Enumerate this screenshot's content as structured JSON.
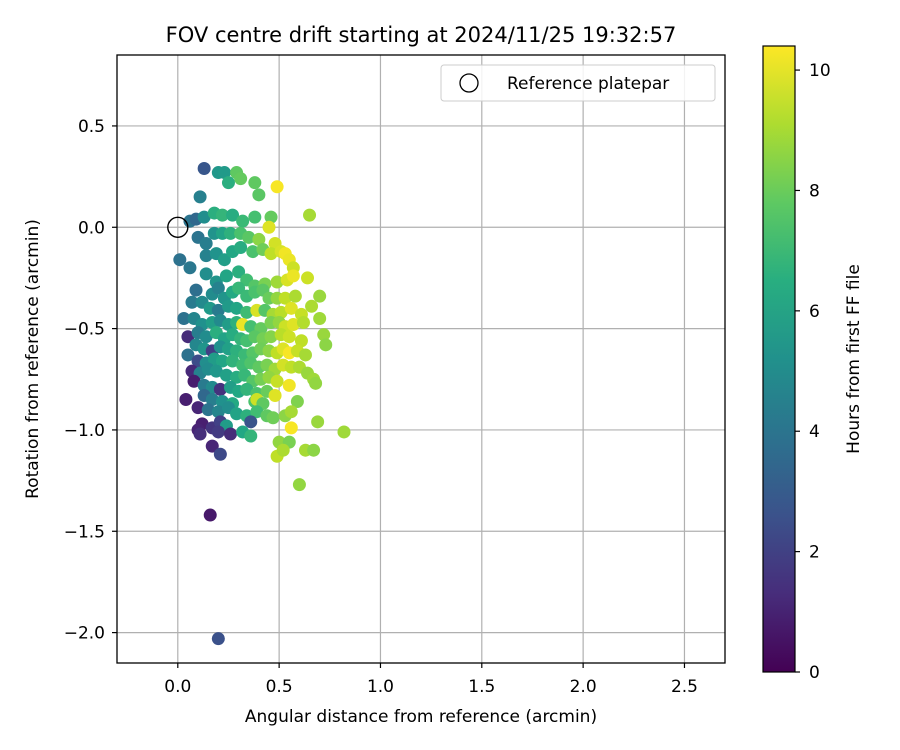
{
  "chart_data": {
    "type": "scatter",
    "title": "FOV centre drift starting at 2024/11/25 19:32:57",
    "xlabel": "Angular distance from reference (arcmin)",
    "ylabel": "Rotation from reference (arcmin)",
    "xlim": [
      -0.3,
      2.7
    ],
    "ylim": [
      -2.15,
      0.85
    ],
    "xticks": [
      0.0,
      0.5,
      1.0,
      1.5,
      2.0,
      2.5
    ],
    "xtick_labels": [
      "0.0",
      "0.5",
      "1.0",
      "1.5",
      "2.0",
      "2.5"
    ],
    "yticks": [
      0.5,
      0.0,
      -0.5,
      -1.0,
      -1.5,
      -2.0
    ],
    "ytick_labels": [
      "0.5",
      "0.0",
      "−0.5",
      "−1.0",
      "−1.5",
      "−2.0"
    ],
    "grid": true,
    "legend": {
      "placement": "top-right",
      "entries": [
        "Reference platepar"
      ]
    },
    "reference_point": {
      "x": 0.0,
      "y": 0.0
    },
    "colorbar": {
      "label": "Hours from first FF file",
      "colormap": "viridis",
      "range": [
        0,
        10.4
      ],
      "ticks": [
        0,
        2,
        4,
        6,
        8,
        10
      ],
      "tick_labels": [
        "0",
        "2",
        "4",
        "6",
        "8",
        "10"
      ]
    },
    "points": [
      {
        "x": 0.13,
        "y": 0.29,
        "h": 2.8
      },
      {
        "x": 0.2,
        "y": 0.27,
        "h": 5.5
      },
      {
        "x": 0.23,
        "y": 0.27,
        "h": 5.6
      },
      {
        "x": 0.29,
        "y": 0.27,
        "h": 7.8
      },
      {
        "x": 0.31,
        "y": 0.24,
        "h": 7.9
      },
      {
        "x": 0.25,
        "y": 0.22,
        "h": 6.5
      },
      {
        "x": 0.38,
        "y": 0.22,
        "h": 7.8
      },
      {
        "x": 0.4,
        "y": 0.16,
        "h": 7.7
      },
      {
        "x": 0.49,
        "y": 0.2,
        "h": 10.3
      },
      {
        "x": 0.65,
        "y": 0.06,
        "h": 9.0
      },
      {
        "x": 0.11,
        "y": 0.15,
        "h": 4.5
      },
      {
        "x": 0.06,
        "y": 0.03,
        "h": 4.0
      },
      {
        "x": 0.09,
        "y": 0.04,
        "h": 3.5
      },
      {
        "x": 0.13,
        "y": 0.05,
        "h": 5.1
      },
      {
        "x": 0.18,
        "y": 0.07,
        "h": 6.5
      },
      {
        "x": 0.22,
        "y": 0.06,
        "h": 6.8
      },
      {
        "x": 0.27,
        "y": 0.06,
        "h": 6.4
      },
      {
        "x": 0.32,
        "y": 0.03,
        "h": 7.0
      },
      {
        "x": 0.38,
        "y": 0.05,
        "h": 7.3
      },
      {
        "x": 0.46,
        "y": 0.05,
        "h": 7.9
      },
      {
        "x": 0.45,
        "y": 0.0,
        "h": 9.9
      },
      {
        "x": 0.1,
        "y": -0.05,
        "h": 4.0
      },
      {
        "x": 0.14,
        "y": -0.08,
        "h": 4.4
      },
      {
        "x": 0.18,
        "y": -0.03,
        "h": 5.3
      },
      {
        "x": 0.22,
        "y": -0.03,
        "h": 6.0
      },
      {
        "x": 0.26,
        "y": -0.03,
        "h": 6.6
      },
      {
        "x": 0.31,
        "y": -0.03,
        "h": 7.4
      },
      {
        "x": 0.35,
        "y": -0.05,
        "h": 7.7
      },
      {
        "x": 0.4,
        "y": -0.06,
        "h": 8.6
      },
      {
        "x": 0.48,
        "y": -0.08,
        "h": 9.7
      },
      {
        "x": 0.01,
        "y": -0.16,
        "h": 3.9
      },
      {
        "x": 0.06,
        "y": -0.2,
        "h": 4.1
      },
      {
        "x": 0.14,
        "y": -0.14,
        "h": 4.6
      },
      {
        "x": 0.19,
        "y": -0.13,
        "h": 5.3
      },
      {
        "x": 0.23,
        "y": -0.16,
        "h": 5.8
      },
      {
        "x": 0.27,
        "y": -0.12,
        "h": 6.2
      },
      {
        "x": 0.31,
        "y": -0.1,
        "h": 6.4
      },
      {
        "x": 0.37,
        "y": -0.12,
        "h": 7.4
      },
      {
        "x": 0.42,
        "y": -0.11,
        "h": 8.1
      },
      {
        "x": 0.46,
        "y": -0.13,
        "h": 9.4
      },
      {
        "x": 0.51,
        "y": -0.12,
        "h": 9.8
      },
      {
        "x": 0.53,
        "y": -0.13,
        "h": 10.2
      },
      {
        "x": 0.55,
        "y": -0.16,
        "h": 10.1
      },
      {
        "x": 0.57,
        "y": -0.2,
        "h": 9.6
      },
      {
        "x": 0.14,
        "y": -0.23,
        "h": 5.1
      },
      {
        "x": 0.19,
        "y": -0.27,
        "h": 5.4
      },
      {
        "x": 0.24,
        "y": -0.24,
        "h": 6.1
      },
      {
        "x": 0.3,
        "y": -0.22,
        "h": 6.5
      },
      {
        "x": 0.34,
        "y": -0.26,
        "h": 7.2
      },
      {
        "x": 0.38,
        "y": -0.29,
        "h": 7.6
      },
      {
        "x": 0.43,
        "y": -0.28,
        "h": 8.3
      },
      {
        "x": 0.49,
        "y": -0.27,
        "h": 8.9
      },
      {
        "x": 0.54,
        "y": -0.26,
        "h": 9.8
      },
      {
        "x": 0.57,
        "y": -0.24,
        "h": 10.1
      },
      {
        "x": 0.64,
        "y": -0.25,
        "h": 9.6
      },
      {
        "x": 0.09,
        "y": -0.31,
        "h": 3.8
      },
      {
        "x": 0.17,
        "y": -0.33,
        "h": 5.0
      },
      {
        "x": 0.2,
        "y": -0.3,
        "h": 4.6
      },
      {
        "x": 0.23,
        "y": -0.35,
        "h": 5.4
      },
      {
        "x": 0.27,
        "y": -0.32,
        "h": 6.3
      },
      {
        "x": 0.3,
        "y": -0.3,
        "h": 6.9
      },
      {
        "x": 0.34,
        "y": -0.34,
        "h": 7.0
      },
      {
        "x": 0.38,
        "y": -0.32,
        "h": 7.4
      },
      {
        "x": 0.42,
        "y": -0.31,
        "h": 7.7
      },
      {
        "x": 0.45,
        "y": -0.35,
        "h": 8.0
      },
      {
        "x": 0.49,
        "y": -0.35,
        "h": 8.7
      },
      {
        "x": 0.53,
        "y": -0.35,
        "h": 9.4
      },
      {
        "x": 0.58,
        "y": -0.34,
        "h": 9.1
      },
      {
        "x": 0.7,
        "y": -0.34,
        "h": 8.8
      },
      {
        "x": 0.07,
        "y": -0.37,
        "h": 4.3
      },
      {
        "x": 0.12,
        "y": -0.37,
        "h": 4.9
      },
      {
        "x": 0.16,
        "y": -0.4,
        "h": 5.6
      },
      {
        "x": 0.2,
        "y": -0.41,
        "h": 4.3
      },
      {
        "x": 0.25,
        "y": -0.39,
        "h": 5.6
      },
      {
        "x": 0.29,
        "y": -0.4,
        "h": 6.1
      },
      {
        "x": 0.34,
        "y": -0.42,
        "h": 7.1
      },
      {
        "x": 0.39,
        "y": -0.41,
        "h": 9.8
      },
      {
        "x": 0.43,
        "y": -0.41,
        "h": 7.6
      },
      {
        "x": 0.47,
        "y": -0.43,
        "h": 9.0
      },
      {
        "x": 0.51,
        "y": -0.42,
        "h": 9.3
      },
      {
        "x": 0.56,
        "y": -0.4,
        "h": 9.9
      },
      {
        "x": 0.61,
        "y": -0.43,
        "h": 9.5
      },
      {
        "x": 0.66,
        "y": -0.39,
        "h": 9.1
      },
      {
        "x": 0.03,
        "y": -0.45,
        "h": 3.9
      },
      {
        "x": 0.08,
        "y": -0.45,
        "h": 4.7
      },
      {
        "x": 0.12,
        "y": -0.48,
        "h": 5.2
      },
      {
        "x": 0.17,
        "y": -0.47,
        "h": 5.8
      },
      {
        "x": 0.21,
        "y": -0.46,
        "h": 4.9
      },
      {
        "x": 0.25,
        "y": -0.48,
        "h": 5.7
      },
      {
        "x": 0.29,
        "y": -0.47,
        "h": 6.6
      },
      {
        "x": 0.32,
        "y": -0.48,
        "h": 10.1
      },
      {
        "x": 0.36,
        "y": -0.49,
        "h": 7.3
      },
      {
        "x": 0.41,
        "y": -0.5,
        "h": 7.9
      },
      {
        "x": 0.46,
        "y": -0.47,
        "h": 8.3
      },
      {
        "x": 0.5,
        "y": -0.47,
        "h": 8.7
      },
      {
        "x": 0.53,
        "y": -0.49,
        "h": 9.6
      },
      {
        "x": 0.57,
        "y": -0.48,
        "h": 9.9
      },
      {
        "x": 0.62,
        "y": -0.47,
        "h": 9.2
      },
      {
        "x": 0.7,
        "y": -0.45,
        "h": 8.9
      },
      {
        "x": 0.05,
        "y": -0.54,
        "h": 1.3
      },
      {
        "x": 0.1,
        "y": -0.52,
        "h": 4.4
      },
      {
        "x": 0.14,
        "y": -0.54,
        "h": 5.0
      },
      {
        "x": 0.19,
        "y": -0.52,
        "h": 6.5
      },
      {
        "x": 0.23,
        "y": -0.55,
        "h": 6.0
      },
      {
        "x": 0.27,
        "y": -0.53,
        "h": 6.4
      },
      {
        "x": 0.31,
        "y": -0.55,
        "h": 6.8
      },
      {
        "x": 0.34,
        "y": -0.56,
        "h": 7.3
      },
      {
        "x": 0.38,
        "y": -0.54,
        "h": 7.7
      },
      {
        "x": 0.42,
        "y": -0.55,
        "h": 8.2
      },
      {
        "x": 0.46,
        "y": -0.54,
        "h": 8.5
      },
      {
        "x": 0.51,
        "y": -0.53,
        "h": 9.3
      },
      {
        "x": 0.55,
        "y": -0.54,
        "h": 9.6
      },
      {
        "x": 0.61,
        "y": -0.56,
        "h": 9.4
      },
      {
        "x": 0.72,
        "y": -0.53,
        "h": 8.8
      },
      {
        "x": 0.73,
        "y": -0.58,
        "h": 8.6
      },
      {
        "x": 0.09,
        "y": -0.58,
        "h": 4.8
      },
      {
        "x": 0.13,
        "y": -0.6,
        "h": 5.4
      },
      {
        "x": 0.17,
        "y": -0.61,
        "h": 1.9
      },
      {
        "x": 0.21,
        "y": -0.59,
        "h": 5.2
      },
      {
        "x": 0.25,
        "y": -0.6,
        "h": 5.9
      },
      {
        "x": 0.29,
        "y": -0.61,
        "h": 6.6
      },
      {
        "x": 0.33,
        "y": -0.63,
        "h": 7.0
      },
      {
        "x": 0.37,
        "y": -0.62,
        "h": 7.6
      },
      {
        "x": 0.41,
        "y": -0.6,
        "h": 8.1
      },
      {
        "x": 0.45,
        "y": -0.61,
        "h": 8.6
      },
      {
        "x": 0.49,
        "y": -0.62,
        "h": 9.4
      },
      {
        "x": 0.52,
        "y": -0.6,
        "h": 9.9
      },
      {
        "x": 0.55,
        "y": -0.62,
        "h": 10.3
      },
      {
        "x": 0.59,
        "y": -0.61,
        "h": 9.5
      },
      {
        "x": 0.63,
        "y": -0.63,
        "h": 9.0
      },
      {
        "x": 0.05,
        "y": -0.63,
        "h": 3.9
      },
      {
        "x": 0.1,
        "y": -0.66,
        "h": 2.4
      },
      {
        "x": 0.14,
        "y": -0.67,
        "h": 5.1
      },
      {
        "x": 0.18,
        "y": -0.65,
        "h": 5.7
      },
      {
        "x": 0.22,
        "y": -0.66,
        "h": 6.1
      },
      {
        "x": 0.27,
        "y": -0.66,
        "h": 6.7
      },
      {
        "x": 0.32,
        "y": -0.68,
        "h": 7.1
      },
      {
        "x": 0.36,
        "y": -0.67,
        "h": 7.5
      },
      {
        "x": 0.4,
        "y": -0.69,
        "h": 7.8
      },
      {
        "x": 0.44,
        "y": -0.68,
        "h": 8.3
      },
      {
        "x": 0.48,
        "y": -0.7,
        "h": 8.9
      },
      {
        "x": 0.52,
        "y": -0.68,
        "h": 9.7
      },
      {
        "x": 0.56,
        "y": -0.69,
        "h": 9.4
      },
      {
        "x": 0.6,
        "y": -0.69,
        "h": 9.1
      },
      {
        "x": 0.64,
        "y": -0.72,
        "h": 8.8
      },
      {
        "x": 0.07,
        "y": -0.71,
        "h": 1.2
      },
      {
        "x": 0.11,
        "y": -0.72,
        "h": 4.6
      },
      {
        "x": 0.15,
        "y": -0.7,
        "h": 5.0
      },
      {
        "x": 0.19,
        "y": -0.71,
        "h": 5.5
      },
      {
        "x": 0.24,
        "y": -0.73,
        "h": 5.9
      },
      {
        "x": 0.29,
        "y": -0.74,
        "h": 6.4
      },
      {
        "x": 0.33,
        "y": -0.73,
        "h": 6.9
      },
      {
        "x": 0.37,
        "y": -0.76,
        "h": 7.6
      },
      {
        "x": 0.41,
        "y": -0.75,
        "h": 8.2
      },
      {
        "x": 0.45,
        "y": -0.74,
        "h": 8.7
      },
      {
        "x": 0.49,
        "y": -0.76,
        "h": 9.5
      },
      {
        "x": 0.55,
        "y": -0.78,
        "h": 10.2
      },
      {
        "x": 0.67,
        "y": -0.75,
        "h": 8.9
      },
      {
        "x": 0.68,
        "y": -0.77,
        "h": 8.7
      },
      {
        "x": 0.08,
        "y": -0.76,
        "h": 0.8
      },
      {
        "x": 0.13,
        "y": -0.78,
        "h": 4.3
      },
      {
        "x": 0.17,
        "y": -0.79,
        "h": 4.9
      },
      {
        "x": 0.21,
        "y": -0.8,
        "h": 1.5
      },
      {
        "x": 0.26,
        "y": -0.79,
        "h": 5.8
      },
      {
        "x": 0.3,
        "y": -0.81,
        "h": 6.2
      },
      {
        "x": 0.34,
        "y": -0.8,
        "h": 6.8
      },
      {
        "x": 0.39,
        "y": -0.82,
        "h": 7.4
      },
      {
        "x": 0.44,
        "y": -0.81,
        "h": 8.0
      },
      {
        "x": 0.48,
        "y": -0.83,
        "h": 9.9
      },
      {
        "x": 0.13,
        "y": -0.83,
        "h": 3.5
      },
      {
        "x": 0.17,
        "y": -0.85,
        "h": 4.4
      },
      {
        "x": 0.22,
        "y": -0.86,
        "h": 5.2
      },
      {
        "x": 0.27,
        "y": -0.87,
        "h": 6.3
      },
      {
        "x": 0.38,
        "y": -0.86,
        "h": 7.4
      },
      {
        "x": 0.39,
        "y": -0.85,
        "h": 9.6
      },
      {
        "x": 0.42,
        "y": -0.87,
        "h": 7.8
      },
      {
        "x": 0.59,
        "y": -0.86,
        "h": 8.4
      },
      {
        "x": 0.04,
        "y": -0.85,
        "h": 0.9
      },
      {
        "x": 0.1,
        "y": -0.89,
        "h": 1.1
      },
      {
        "x": 0.15,
        "y": -0.9,
        "h": 4.0
      },
      {
        "x": 0.2,
        "y": -0.91,
        "h": 4.7
      },
      {
        "x": 0.25,
        "y": -0.89,
        "h": 5.1
      },
      {
        "x": 0.29,
        "y": -0.92,
        "h": 6.0
      },
      {
        "x": 0.34,
        "y": -0.93,
        "h": 6.6
      },
      {
        "x": 0.39,
        "y": -0.91,
        "h": 7.2
      },
      {
        "x": 0.44,
        "y": -0.93,
        "h": 7.8
      },
      {
        "x": 0.47,
        "y": -0.94,
        "h": 8.1
      },
      {
        "x": 0.53,
        "y": -0.93,
        "h": 8.6
      },
      {
        "x": 0.56,
        "y": -0.91,
        "h": 9.0
      },
      {
        "x": 0.12,
        "y": -0.97,
        "h": 0.9
      },
      {
        "x": 0.17,
        "y": -0.99,
        "h": 1.6
      },
      {
        "x": 0.21,
        "y": -0.96,
        "h": 2.0
      },
      {
        "x": 0.24,
        "y": -0.98,
        "h": 5.7
      },
      {
        "x": 0.36,
        "y": -0.96,
        "h": 2.7
      },
      {
        "x": 0.56,
        "y": -0.99,
        "h": 10.3
      },
      {
        "x": 0.69,
        "y": -0.96,
        "h": 8.8
      },
      {
        "x": 0.1,
        "y": -1.0,
        "h": 1.0
      },
      {
        "x": 0.11,
        "y": -1.02,
        "h": 1.4
      },
      {
        "x": 0.2,
        "y": -1.01,
        "h": 1.8
      },
      {
        "x": 0.26,
        "y": -1.02,
        "h": 1.3
      },
      {
        "x": 0.32,
        "y": -1.01,
        "h": 6.2
      },
      {
        "x": 0.36,
        "y": -1.03,
        "h": 6.8
      },
      {
        "x": 0.82,
        "y": -1.01,
        "h": 8.9
      },
      {
        "x": 0.17,
        "y": -1.08,
        "h": 1.1
      },
      {
        "x": 0.5,
        "y": -1.06,
        "h": 8.7
      },
      {
        "x": 0.55,
        "y": -1.06,
        "h": 8.3
      },
      {
        "x": 0.63,
        "y": -1.1,
        "h": 9.0
      },
      {
        "x": 0.67,
        "y": -1.1,
        "h": 8.6
      },
      {
        "x": 0.21,
        "y": -1.12,
        "h": 2.3
      },
      {
        "x": 0.49,
        "y": -1.13,
        "h": 9.4
      },
      {
        "x": 0.52,
        "y": -1.1,
        "h": 9.1
      },
      {
        "x": 0.6,
        "y": -1.27,
        "h": 8.7
      },
      {
        "x": 0.16,
        "y": -1.42,
        "h": 0.7
      },
      {
        "x": 0.2,
        "y": -2.03,
        "h": 2.6
      }
    ]
  }
}
